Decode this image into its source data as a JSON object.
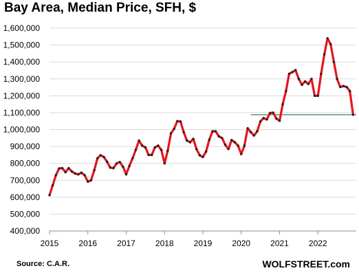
{
  "chart_data": {
    "type": "line",
    "title": "Bay Area, Median Price, SFH, $",
    "xlabel": "",
    "ylabel": "",
    "source": "Source: C.A.R.",
    "brand": "WOLFSTREET.com",
    "ylim": [
      400000,
      1600000
    ],
    "xlim": [
      2015,
      2023
    ],
    "grid": "horizontal",
    "yticks": [
      400000,
      500000,
      600000,
      700000,
      800000,
      900000,
      1000000,
      1100000,
      1200000,
      1300000,
      1400000,
      1500000,
      1600000
    ],
    "ytick_labels": [
      "400,000",
      "500,000",
      "600,000",
      "700,000",
      "800,000",
      "900,000",
      "1,000,000",
      "1,100,000",
      "1,200,000",
      "1,300,000",
      "1,400,000",
      "1,500,000",
      "1,600,000"
    ],
    "xticks": [
      2015,
      2016,
      2017,
      2018,
      2019,
      2020,
      2021,
      2022
    ],
    "xtick_labels": [
      "2015",
      "2016",
      "2017",
      "2018",
      "2019",
      "2020",
      "2021",
      "2022"
    ],
    "line_color": "#e8141b",
    "marker_color": "#222222",
    "reference_line": {
      "value": 1088000,
      "x_start": 2020.25,
      "x_end": 2023,
      "color": "#2e8b57"
    },
    "series": [
      {
        "values": [
          [
            2015.0,
            612000
          ],
          [
            2015.083,
            670000
          ],
          [
            2015.167,
            730000
          ],
          [
            2015.25,
            770000
          ],
          [
            2015.333,
            772000
          ],
          [
            2015.417,
            748000
          ],
          [
            2015.5,
            772000
          ],
          [
            2015.583,
            752000
          ],
          [
            2015.667,
            740000
          ],
          [
            2015.75,
            735000
          ],
          [
            2015.833,
            745000
          ],
          [
            2015.917,
            730000
          ],
          [
            2016.0,
            692000
          ],
          [
            2016.083,
            700000
          ],
          [
            2016.167,
            760000
          ],
          [
            2016.25,
            830000
          ],
          [
            2016.333,
            848000
          ],
          [
            2016.417,
            838000
          ],
          [
            2016.5,
            810000
          ],
          [
            2016.583,
            775000
          ],
          [
            2016.667,
            772000
          ],
          [
            2016.75,
            800000
          ],
          [
            2016.833,
            808000
          ],
          [
            2016.917,
            780000
          ],
          [
            2017.0,
            735000
          ],
          [
            2017.083,
            785000
          ],
          [
            2017.167,
            830000
          ],
          [
            2017.25,
            880000
          ],
          [
            2017.333,
            935000
          ],
          [
            2017.417,
            905000
          ],
          [
            2017.5,
            895000
          ],
          [
            2017.583,
            850000
          ],
          [
            2017.667,
            850000
          ],
          [
            2017.75,
            895000
          ],
          [
            2017.833,
            905000
          ],
          [
            2017.917,
            880000
          ],
          [
            2018.0,
            800000
          ],
          [
            2018.083,
            875000
          ],
          [
            2018.167,
            978000
          ],
          [
            2018.25,
            1005000
          ],
          [
            2018.333,
            1050000
          ],
          [
            2018.417,
            1048000
          ],
          [
            2018.5,
            985000
          ],
          [
            2018.583,
            935000
          ],
          [
            2018.667,
            925000
          ],
          [
            2018.75,
            945000
          ],
          [
            2018.833,
            885000
          ],
          [
            2018.917,
            848000
          ],
          [
            2019.0,
            838000
          ],
          [
            2019.083,
            870000
          ],
          [
            2019.167,
            940000
          ],
          [
            2019.25,
            990000
          ],
          [
            2019.333,
            990000
          ],
          [
            2019.417,
            960000
          ],
          [
            2019.5,
            950000
          ],
          [
            2019.583,
            910000
          ],
          [
            2019.667,
            885000
          ],
          [
            2019.75,
            938000
          ],
          [
            2019.833,
            925000
          ],
          [
            2019.917,
            905000
          ],
          [
            2020.0,
            855000
          ],
          [
            2020.083,
            905000
          ],
          [
            2020.167,
            1008000
          ],
          [
            2020.25,
            985000
          ],
          [
            2020.333,
            965000
          ],
          [
            2020.417,
            990000
          ],
          [
            2020.5,
            1048000
          ],
          [
            2020.583,
            1068000
          ],
          [
            2020.667,
            1060000
          ],
          [
            2020.75,
            1098000
          ],
          [
            2020.833,
            1100000
          ],
          [
            2020.917,
            1065000
          ],
          [
            2021.0,
            1052000
          ],
          [
            2021.083,
            1150000
          ],
          [
            2021.167,
            1228000
          ],
          [
            2021.25,
            1330000
          ],
          [
            2021.333,
            1340000
          ],
          [
            2021.417,
            1352000
          ],
          [
            2021.5,
            1300000
          ],
          [
            2021.583,
            1265000
          ],
          [
            2021.667,
            1285000
          ],
          [
            2021.75,
            1270000
          ],
          [
            2021.833,
            1300000
          ],
          [
            2021.917,
            1200000
          ],
          [
            2022.0,
            1200000
          ],
          [
            2022.083,
            1330000
          ],
          [
            2022.167,
            1445000
          ],
          [
            2022.25,
            1540000
          ],
          [
            2022.333,
            1505000
          ],
          [
            2022.417,
            1400000
          ],
          [
            2022.5,
            1300000
          ],
          [
            2022.583,
            1252000
          ],
          [
            2022.667,
            1258000
          ],
          [
            2022.75,
            1252000
          ],
          [
            2022.833,
            1228000
          ],
          [
            2022.917,
            1088000
          ]
        ]
      }
    ]
  }
}
